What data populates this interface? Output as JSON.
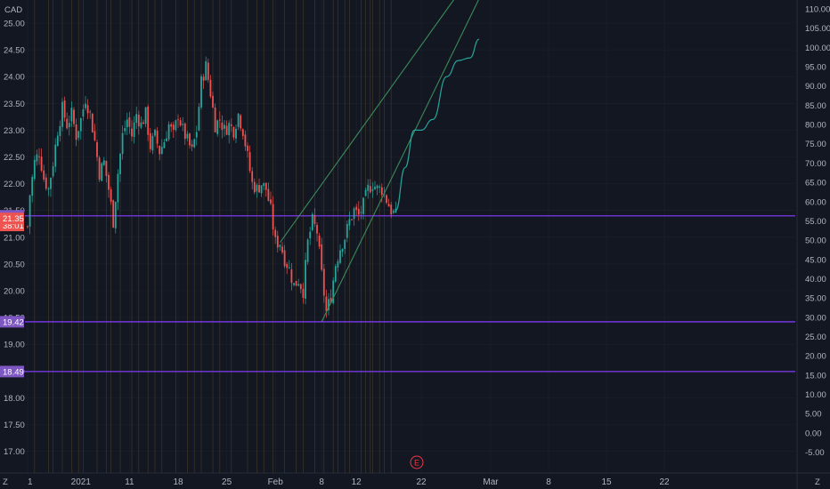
{
  "currency_label": "CAD",
  "earnings_marker": "E",
  "corner_left": "Z",
  "corner_right": "Z",
  "colors": {
    "background": "#131722",
    "up": "#26a69a",
    "down": "#ef5350",
    "grid": "#2a2e39",
    "vline": "#5b4a2a",
    "hline": "#7c3aed",
    "channel": "#3b8a5a",
    "projection": "#26a69a",
    "price_badge": "#ef5350",
    "level_badge": "#7e57c2",
    "axis_text": "#b2b5be",
    "earnings": "#f23645"
  },
  "chart_data": {
    "type": "candlestick",
    "x_axis": {
      "ticks": [
        "1",
        "2021",
        "11",
        "18",
        "25",
        "Feb",
        "8",
        "12",
        "22",
        "Mar",
        "8",
        "15",
        "22"
      ]
    },
    "left_axis": {
      "unit": "CAD",
      "min": 16.75,
      "max": 25.25,
      "ticks": [
        "25.00",
        "24.50",
        "24.00",
        "23.50",
        "23.00",
        "22.50",
        "22.00",
        "21.50",
        "21.00",
        "20.50",
        "20.00",
        "19.50",
        "19.00",
        "18.50",
        "18.00",
        "17.50",
        "17.00"
      ]
    },
    "right_axis": {
      "min": -7.0,
      "max": 111.5,
      "ticks": [
        "110.00",
        "105.00",
        "100.00",
        "95.00",
        "90.00",
        "85.00",
        "80.00",
        "75.00",
        "70.00",
        "65.00",
        "60.00",
        "55.00",
        "50.00",
        "45.00",
        "40.00",
        "35.00",
        "30.00",
        "25.00",
        "20.00",
        "15.00",
        "10.00",
        "5.00",
        "0.00",
        "-5.00"
      ]
    },
    "price_badges": [
      {
        "label": "21.40",
        "value": 21.4,
        "kind": "level"
      },
      {
        "label": "38:01",
        "value": 21.22,
        "kind": "price"
      },
      {
        "label": "21.35",
        "value": 21.35,
        "kind": "price"
      },
      {
        "label": "19.42",
        "value": 19.42,
        "kind": "level"
      },
      {
        "label": "18.49",
        "value": 18.49,
        "kind": "level"
      }
    ],
    "horizontal_levels": [
      21.4,
      19.42,
      18.49
    ],
    "close_path": [
      {
        "bar": 0,
        "close": 21.2
      },
      {
        "bar": 1,
        "close": 21.8
      },
      {
        "bar": 3,
        "close": 22.4
      },
      {
        "bar": 5,
        "close": 22.6
      },
      {
        "bar": 7,
        "close": 22.1
      },
      {
        "bar": 9,
        "close": 21.9
      },
      {
        "bar": 11,
        "close": 22.4
      },
      {
        "bar": 13,
        "close": 23.0
      },
      {
        "bar": 15,
        "close": 23.4
      },
      {
        "bar": 17,
        "close": 23.1
      },
      {
        "bar": 19,
        "close": 23.3
      },
      {
        "bar": 21,
        "close": 22.9
      },
      {
        "bar": 23,
        "close": 23.2
      },
      {
        "bar": 25,
        "close": 23.6
      },
      {
        "bar": 27,
        "close": 23.3
      },
      {
        "bar": 29,
        "close": 22.8
      },
      {
        "bar": 31,
        "close": 22.2
      },
      {
        "bar": 33,
        "close": 22.4
      },
      {
        "bar": 35,
        "close": 21.9
      },
      {
        "bar": 37,
        "close": 21.3
      },
      {
        "bar": 39,
        "close": 22.2
      },
      {
        "bar": 41,
        "close": 22.9
      },
      {
        "bar": 43,
        "close": 23.2
      },
      {
        "bar": 45,
        "close": 22.9
      },
      {
        "bar": 47,
        "close": 23.3
      },
      {
        "bar": 49,
        "close": 23.1
      },
      {
        "bar": 51,
        "close": 23.3
      },
      {
        "bar": 53,
        "close": 22.7
      },
      {
        "bar": 55,
        "close": 22.9
      },
      {
        "bar": 57,
        "close": 22.6
      },
      {
        "bar": 59,
        "close": 22.8
      },
      {
        "bar": 61,
        "close": 23.1
      },
      {
        "bar": 63,
        "close": 22.9
      },
      {
        "bar": 65,
        "close": 23.3
      },
      {
        "bar": 67,
        "close": 23.0
      },
      {
        "bar": 69,
        "close": 22.8
      },
      {
        "bar": 71,
        "close": 22.6
      },
      {
        "bar": 73,
        "close": 23.0
      },
      {
        "bar": 75,
        "close": 23.9
      },
      {
        "bar": 77,
        "close": 24.2
      },
      {
        "bar": 79,
        "close": 23.7
      },
      {
        "bar": 81,
        "close": 23.1
      },
      {
        "bar": 83,
        "close": 23.2
      },
      {
        "bar": 85,
        "close": 23.0
      },
      {
        "bar": 87,
        "close": 23.1
      },
      {
        "bar": 89,
        "close": 23.0
      },
      {
        "bar": 91,
        "close": 23.3
      },
      {
        "bar": 93,
        "close": 23.0
      },
      {
        "bar": 95,
        "close": 22.5
      },
      {
        "bar": 97,
        "close": 22.0
      },
      {
        "bar": 99,
        "close": 21.9
      },
      {
        "bar": 101,
        "close": 22.0
      },
      {
        "bar": 103,
        "close": 21.9
      },
      {
        "bar": 105,
        "close": 21.5
      },
      {
        "bar": 107,
        "close": 20.9
      },
      {
        "bar": 109,
        "close": 20.9
      },
      {
        "bar": 111,
        "close": 20.6
      },
      {
        "bar": 113,
        "close": 20.4
      },
      {
        "bar": 115,
        "close": 20.1
      },
      {
        "bar": 117,
        "close": 20.2
      },
      {
        "bar": 119,
        "close": 20.0
      },
      {
        "bar": 121,
        "close": 20.9
      },
      {
        "bar": 123,
        "close": 21.3
      },
      {
        "bar": 125,
        "close": 21.1
      },
      {
        "bar": 127,
        "close": 20.3
      },
      {
        "bar": 129,
        "close": 19.6
      },
      {
        "bar": 131,
        "close": 19.9
      },
      {
        "bar": 133,
        "close": 20.5
      },
      {
        "bar": 135,
        "close": 20.8
      },
      {
        "bar": 137,
        "close": 21.0
      },
      {
        "bar": 139,
        "close": 21.3
      },
      {
        "bar": 141,
        "close": 21.5
      },
      {
        "bar": 143,
        "close": 21.4
      },
      {
        "bar": 145,
        "close": 21.6
      },
      {
        "bar": 147,
        "close": 21.9
      },
      {
        "bar": 149,
        "close": 22.0
      },
      {
        "bar": 151,
        "close": 21.9
      },
      {
        "bar": 153,
        "close": 21.9
      },
      {
        "bar": 155,
        "close": 21.7
      },
      {
        "bar": 157,
        "close": 21.5
      },
      {
        "bar": 159,
        "close": 21.4
      }
    ],
    "bar_count": 160,
    "x_tick_bars": [
      0,
      23,
      44,
      65,
      86,
      107,
      127,
      142,
      170,
      200,
      225,
      250,
      275
    ],
    "vertical_marker_bars": [
      3,
      9,
      11,
      15,
      19,
      22,
      24,
      30,
      34,
      36,
      40,
      45,
      48,
      52,
      55,
      58,
      64,
      69,
      72,
      75,
      80,
      83,
      88,
      95,
      99,
      102,
      106,
      111,
      116,
      119,
      124,
      128,
      132,
      134,
      137,
      139,
      144,
      146,
      148,
      149,
      152,
      154,
      157
    ],
    "channel": {
      "lower": {
        "from": {
          "bar": 127,
          "value": 19.42
        },
        "to": {
          "bar": 200,
          "value": 25.9
        }
      },
      "upper": {
        "from": {
          "bar": 109,
          "value": 20.9
        },
        "to": {
          "bar": 200,
          "value": 26.4
        }
      }
    },
    "projection_path": [
      {
        "bar": 159,
        "value": 21.5
      },
      {
        "bar": 163,
        "value": 22.3
      },
      {
        "bar": 167,
        "value": 23.0
      },
      {
        "bar": 170,
        "value": 23.0
      },
      {
        "bar": 175,
        "value": 23.2
      },
      {
        "bar": 181,
        "value": 24.0
      },
      {
        "bar": 186,
        "value": 24.3
      },
      {
        "bar": 191,
        "value": 24.35
      },
      {
        "bar": 195,
        "value": 24.7
      }
    ]
  }
}
